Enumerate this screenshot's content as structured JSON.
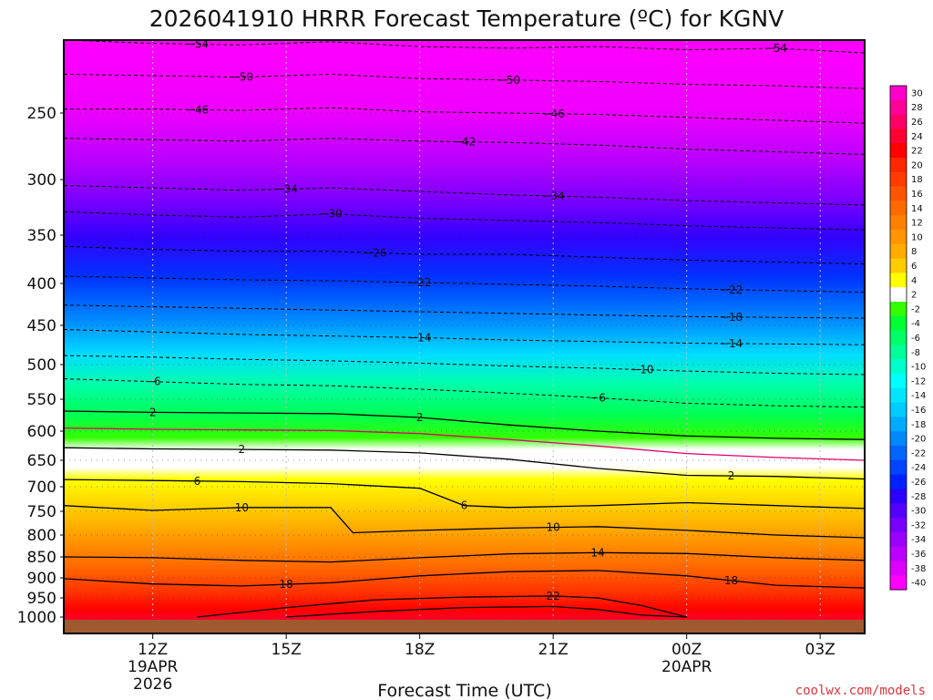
{
  "chart_data": {
    "type": "time-height contour",
    "title": "2026041910 HRRR Forecast Temperature (ºC) for KGNV",
    "xlabel": "Forecast Time (UTC)",
    "credit": "coolwx.com/models",
    "x_ticks": [
      {
        "hour": 12,
        "label": "12Z",
        "sub1": "19APR",
        "sub2": "2026"
      },
      {
        "hour": 15,
        "label": "15Z",
        "sub1": "",
        "sub2": ""
      },
      {
        "hour": 18,
        "label": "18Z",
        "sub1": "",
        "sub2": ""
      },
      {
        "hour": 21,
        "label": "21Z",
        "sub1": "",
        "sub2": ""
      },
      {
        "hour": 24,
        "label": "00Z",
        "sub1": "20APR",
        "sub2": ""
      },
      {
        "hour": 27,
        "label": "03Z",
        "sub1": "",
        "sub2": ""
      }
    ],
    "x_range_hours": [
      10,
      28
    ],
    "ylabel": "Pressure (hPa)",
    "y_ticks": [
      "250",
      "300",
      "350",
      "400",
      "450",
      "500",
      "550",
      "600",
      "650",
      "700",
      "750",
      "800",
      "850",
      "900",
      "950",
      "1000"
    ],
    "y_range_hpa": [
      200,
      1000
    ],
    "colorbar_levels": [
      "30",
      "28",
      "26",
      "24",
      "22",
      "20",
      "18",
      "16",
      "14",
      "12",
      "10",
      "8",
      "6",
      "4",
      "2",
      "-2",
      "-4",
      "-6",
      "-8",
      "-10",
      "-12",
      "-14",
      "-16",
      "-18",
      "-20",
      "-22",
      "-24",
      "-26",
      "-28",
      "-30",
      "-32",
      "-34",
      "-36",
      "-38",
      "-40"
    ],
    "colorbar_colors": [
      "#ff00cc",
      "#ff0099",
      "#ff0066",
      "#ff0033",
      "#ff0000",
      "#ff2600",
      "#ff3d00",
      "#ff5500",
      "#ff6a00",
      "#ff8000",
      "#ff9500",
      "#ffab00",
      "#ffcc00",
      "#ffff00",
      "#ffffff",
      "#33ff00",
      "#00ff33",
      "#00ff66",
      "#00ff99",
      "#00ffcc",
      "#00ffff",
      "#00e6ff",
      "#00ccff",
      "#00aaff",
      "#0088ff",
      "#0066ff",
      "#0044ff",
      "#0022ff",
      "#2a00ff",
      "#5500ff",
      "#7700ff",
      "#9900ff",
      "#bb00ff",
      "#dd00ff",
      "#ff00ff"
    ],
    "contours": [
      {
        "value": -54,
        "label": "−54",
        "label_hours": [
          13.0,
          26.0
        ],
        "points": [
          [
            10,
            200
          ],
          [
            12,
            202
          ],
          [
            14,
            203
          ],
          [
            16,
            201
          ],
          [
            18,
            204
          ],
          [
            20,
            205
          ],
          [
            22,
            204
          ],
          [
            24,
            206
          ],
          [
            26,
            205
          ],
          [
            28,
            208
          ]
        ]
      },
      {
        "value": -50,
        "label": "−50",
        "label_hours": [
          14.0,
          20.0
        ],
        "points": [
          [
            10,
            222
          ],
          [
            12,
            223
          ],
          [
            14,
            224
          ],
          [
            16,
            222
          ],
          [
            18,
            225
          ],
          [
            20,
            226
          ],
          [
            22,
            227
          ],
          [
            24,
            229
          ],
          [
            26,
            230
          ],
          [
            28,
            232
          ]
        ]
      },
      {
        "value": -46,
        "label": "−46",
        "label_hours": [
          13.0,
          21.0
        ],
        "points": [
          [
            10,
            247
          ],
          [
            12,
            247
          ],
          [
            14,
            248
          ],
          [
            16,
            246
          ],
          [
            18,
            249
          ],
          [
            20,
            250
          ],
          [
            22,
            251
          ],
          [
            24,
            253
          ],
          [
            26,
            255
          ],
          [
            28,
            257
          ]
        ]
      },
      {
        "value": -42,
        "label": "−42",
        "label_hours": [
          19.0
        ],
        "points": [
          [
            10,
            268
          ],
          [
            12,
            269
          ],
          [
            14,
            270
          ],
          [
            16,
            268
          ],
          [
            18,
            270
          ],
          [
            20,
            271
          ],
          [
            22,
            273
          ],
          [
            24,
            276
          ],
          [
            26,
            278
          ],
          [
            28,
            280
          ]
        ]
      },
      {
        "value": -34,
        "label": "−34",
        "label_hours": [
          15.0,
          21.0
        ],
        "points": [
          [
            10,
            305
          ],
          [
            12,
            307
          ],
          [
            14,
            309
          ],
          [
            16,
            307
          ],
          [
            18,
            310
          ],
          [
            20,
            313
          ],
          [
            22,
            315
          ],
          [
            24,
            318
          ],
          [
            26,
            320
          ],
          [
            28,
            322
          ]
        ]
      },
      {
        "value": -30,
        "label": "−30",
        "label_hours": [
          16.0
        ],
        "points": [
          [
            10,
            328
          ],
          [
            12,
            331
          ],
          [
            14,
            333
          ],
          [
            16,
            330
          ],
          [
            18,
            334
          ],
          [
            20,
            336
          ],
          [
            22,
            338
          ],
          [
            24,
            341
          ],
          [
            26,
            343
          ],
          [
            28,
            345
          ]
        ]
      },
      {
        "value": -26,
        "label": "−26",
        "label_hours": [
          17.0
        ],
        "points": [
          [
            10,
            361
          ],
          [
            12,
            364
          ],
          [
            14,
            366
          ],
          [
            16,
            366
          ],
          [
            18,
            369
          ],
          [
            20,
            369
          ],
          [
            22,
            372
          ],
          [
            24,
            375
          ],
          [
            26,
            377
          ],
          [
            28,
            379
          ]
        ]
      },
      {
        "value": -22,
        "label": "−22",
        "label_hours": [
          18.0,
          25.0
        ],
        "points": [
          [
            10,
            392
          ],
          [
            12,
            394
          ],
          [
            14,
            396
          ],
          [
            16,
            397
          ],
          [
            18,
            399
          ],
          [
            20,
            401
          ],
          [
            22,
            403
          ],
          [
            24,
            406
          ],
          [
            26,
            408
          ],
          [
            28,
            410
          ]
        ]
      },
      {
        "value": -18,
        "label": "−18",
        "label_hours": [
          25.0
        ],
        "points": [
          [
            10,
            425
          ],
          [
            12,
            427
          ],
          [
            14,
            429
          ],
          [
            16,
            431
          ],
          [
            18,
            433
          ],
          [
            20,
            435
          ],
          [
            22,
            437
          ],
          [
            24,
            439
          ],
          [
            26,
            440
          ],
          [
            28,
            441
          ]
        ]
      },
      {
        "value": -14,
        "label": "−14",
        "label_hours": [
          18.0,
          25.0
        ],
        "points": [
          [
            10,
            455
          ],
          [
            12,
            458
          ],
          [
            14,
            461
          ],
          [
            16,
            463
          ],
          [
            18,
            465
          ],
          [
            20,
            468
          ],
          [
            22,
            470
          ],
          [
            24,
            472
          ],
          [
            26,
            473
          ],
          [
            28,
            474
          ]
        ]
      },
      {
        "value": -10,
        "label": "−10",
        "label_hours": [
          23.0
        ],
        "points": [
          [
            10,
            488
          ],
          [
            12,
            490
          ],
          [
            14,
            493
          ],
          [
            16,
            495
          ],
          [
            18,
            498
          ],
          [
            20,
            502
          ],
          [
            22,
            505
          ],
          [
            24,
            509
          ],
          [
            26,
            512
          ],
          [
            28,
            514
          ]
        ]
      },
      {
        "value": -6,
        "label": "−6",
        "label_hours": [
          12.0,
          22.0
        ],
        "points": [
          [
            10,
            520
          ],
          [
            12,
            524
          ],
          [
            14,
            528
          ],
          [
            16,
            530
          ],
          [
            18,
            535
          ],
          [
            20,
            541
          ],
          [
            22,
            548
          ],
          [
            24,
            556
          ],
          [
            26,
            560
          ],
          [
            28,
            562
          ]
        ]
      },
      {
        "value": 2,
        "label": "2",
        "label_hours": [
          12.0,
          18.0
        ],
        "points": [
          [
            10,
            568
          ],
          [
            12,
            570
          ],
          [
            14,
            571
          ],
          [
            16,
            572
          ],
          [
            18,
            578
          ],
          [
            20,
            590
          ],
          [
            22,
            600
          ],
          [
            24,
            608
          ],
          [
            26,
            612
          ],
          [
            28,
            614
          ]
        ]
      },
      {
        "value": 0,
        "label": "",
        "label_hours": [],
        "points": [
          [
            10,
            595
          ],
          [
            12,
            597
          ],
          [
            14,
            598
          ],
          [
            16,
            599
          ],
          [
            18,
            604
          ],
          [
            20,
            614
          ],
          [
            22,
            625
          ],
          [
            24,
            638
          ],
          [
            26,
            645
          ],
          [
            28,
            650
          ]
        ]
      },
      {
        "value": 2,
        "label": "2",
        "label_hours": [
          14.0,
          25.0
        ],
        "points": [
          [
            10,
            628
          ],
          [
            12,
            630
          ],
          [
            14,
            631
          ],
          [
            16,
            632
          ],
          [
            18,
            637
          ],
          [
            20,
            648
          ],
          [
            22,
            665
          ],
          [
            24,
            678
          ],
          [
            26,
            680
          ],
          [
            28,
            685
          ]
        ]
      },
      {
        "value": 6,
        "label": "6",
        "label_hours": [
          13.0,
          19.0
        ],
        "points": [
          [
            10,
            686
          ],
          [
            12,
            688
          ],
          [
            14,
            690
          ],
          [
            16,
            694
          ],
          [
            18,
            703
          ],
          [
            19,
            738
          ],
          [
            20,
            742
          ],
          [
            22,
            738
          ],
          [
            24,
            732
          ],
          [
            26,
            738
          ],
          [
            28,
            744
          ]
        ]
      },
      {
        "value": 10,
        "label": "10",
        "label_hours": [
          14.0,
          21.0
        ],
        "points": [
          [
            10,
            738
          ],
          [
            12,
            748
          ],
          [
            14,
            742
          ],
          [
            16,
            742
          ],
          [
            16.5,
            795
          ],
          [
            18,
            790
          ],
          [
            20,
            785
          ],
          [
            22,
            782
          ],
          [
            24,
            790
          ],
          [
            26,
            800
          ],
          [
            28,
            806
          ]
        ]
      },
      {
        "value": 14,
        "label": "14",
        "label_hours": [
          22.0
        ],
        "points": [
          [
            10,
            850
          ],
          [
            12,
            852
          ],
          [
            14,
            858
          ],
          [
            16,
            862
          ],
          [
            18,
            852
          ],
          [
            20,
            843
          ],
          [
            22,
            840
          ],
          [
            24,
            842
          ],
          [
            26,
            852
          ],
          [
            28,
            858
          ]
        ]
      },
      {
        "value": 18,
        "label": "18",
        "label_hours": [
          15.0,
          25.0
        ],
        "points": [
          [
            10,
            902
          ],
          [
            12,
            915
          ],
          [
            14,
            920
          ],
          [
            16,
            912
          ],
          [
            18,
            895
          ],
          [
            20,
            885
          ],
          [
            22,
            882
          ],
          [
            24,
            895
          ],
          [
            26,
            918
          ],
          [
            28,
            925
          ]
        ]
      },
      {
        "value": 22,
        "label": "22",
        "label_hours": [
          21.0
        ],
        "points": [
          [
            13,
            1000
          ],
          [
            15,
            975
          ],
          [
            17,
            955
          ],
          [
            19,
            948
          ],
          [
            21,
            945
          ],
          [
            22,
            950
          ],
          [
            23,
            970
          ],
          [
            24,
            1000
          ]
        ]
      },
      {
        "value": 26,
        "label": "",
        "label_hours": [],
        "points": [
          [
            15,
            1000
          ],
          [
            17,
            985
          ],
          [
            19,
            975
          ],
          [
            21,
            972
          ],
          [
            22,
            980
          ],
          [
            23,
            995
          ],
          [
            24,
            1000
          ]
        ]
      }
    ]
  }
}
